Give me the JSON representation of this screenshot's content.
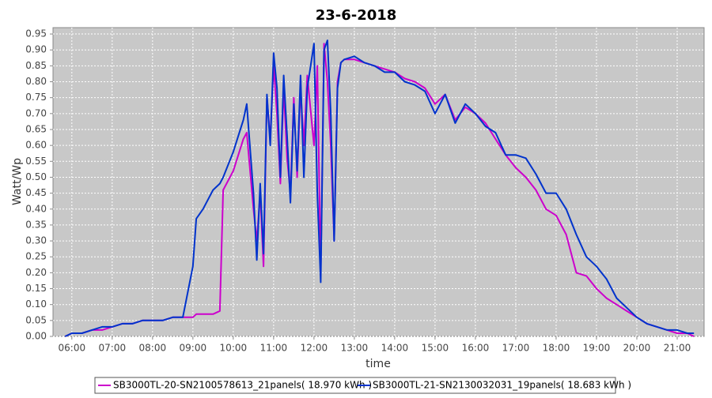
{
  "chart_data": {
    "type": "line",
    "title": "23-6-2018",
    "x_label": "time",
    "y_label": "Watt/Wp",
    "x": [
      "05:50",
      "06:00",
      "06:15",
      "06:30",
      "06:45",
      "07:00",
      "07:15",
      "07:30",
      "07:45",
      "08:00",
      "08:15",
      "08:30",
      "08:45",
      "09:00",
      "09:05",
      "09:15",
      "09:30",
      "09:40",
      "09:45",
      "10:00",
      "10:15",
      "10:20",
      "10:30",
      "10:35",
      "10:40",
      "10:45",
      "10:50",
      "10:55",
      "11:00",
      "11:05",
      "11:10",
      "11:15",
      "11:20",
      "11:25",
      "11:30",
      "11:35",
      "11:40",
      "11:45",
      "11:50",
      "12:00",
      "12:05",
      "12:10",
      "12:15",
      "12:20",
      "12:25",
      "12:30",
      "12:35",
      "12:40",
      "12:45",
      "13:00",
      "13:15",
      "13:30",
      "13:45",
      "14:00",
      "14:15",
      "14:30",
      "14:45",
      "15:00",
      "15:15",
      "15:30",
      "15:45",
      "16:00",
      "16:15",
      "16:30",
      "16:45",
      "17:00",
      "17:15",
      "17:30",
      "17:45",
      "18:00",
      "18:15",
      "18:30",
      "18:45",
      "19:00",
      "19:15",
      "19:30",
      "19:45",
      "20:00",
      "20:15",
      "20:30",
      "20:45",
      "21:00",
      "21:15",
      "21:25"
    ],
    "series": [
      {
        "name": "SB3000TL-20-SN2100578613_21panels( 18.970 kWh )",
        "color": "#cc00cc",
        "values": [
          0.0,
          0.01,
          0.01,
          0.02,
          0.02,
          0.03,
          0.04,
          0.04,
          0.05,
          0.05,
          0.05,
          0.06,
          0.06,
          0.06,
          0.07,
          0.07,
          0.07,
          0.08,
          0.46,
          0.52,
          0.62,
          0.64,
          0.4,
          0.3,
          0.45,
          0.22,
          0.75,
          0.62,
          0.85,
          0.7,
          0.48,
          0.78,
          0.56,
          0.45,
          0.75,
          0.5,
          0.78,
          0.6,
          0.82,
          0.6,
          0.85,
          0.2,
          0.92,
          0.8,
          0.6,
          0.3,
          0.8,
          0.86,
          0.87,
          0.87,
          0.86,
          0.85,
          0.84,
          0.83,
          0.81,
          0.8,
          0.78,
          0.73,
          0.76,
          0.68,
          0.72,
          0.7,
          0.67,
          0.62,
          0.57,
          0.53,
          0.5,
          0.46,
          0.4,
          0.38,
          0.32,
          0.2,
          0.19,
          0.15,
          0.12,
          0.1,
          0.08,
          0.06,
          0.04,
          0.03,
          0.02,
          0.01,
          0.01,
          0.0
        ]
      },
      {
        "name": "SB3000TL-21-SN2130032031_19panels( 18.683 kWh )",
        "color": "#0033cc",
        "values": [
          0.0,
          0.01,
          0.01,
          0.02,
          0.03,
          0.03,
          0.04,
          0.04,
          0.05,
          0.05,
          0.05,
          0.06,
          0.06,
          0.22,
          0.37,
          0.4,
          0.46,
          0.48,
          0.5,
          0.58,
          0.68,
          0.73,
          0.45,
          0.24,
          0.48,
          0.26,
          0.76,
          0.6,
          0.89,
          0.78,
          0.5,
          0.82,
          0.63,
          0.42,
          0.73,
          0.52,
          0.82,
          0.5,
          0.78,
          0.92,
          0.45,
          0.17,
          0.9,
          0.93,
          0.7,
          0.3,
          0.78,
          0.86,
          0.87,
          0.88,
          0.86,
          0.85,
          0.83,
          0.83,
          0.8,
          0.79,
          0.77,
          0.7,
          0.76,
          0.67,
          0.73,
          0.7,
          0.66,
          0.64,
          0.57,
          0.57,
          0.56,
          0.51,
          0.45,
          0.45,
          0.4,
          0.32,
          0.25,
          0.22,
          0.18,
          0.12,
          0.09,
          0.06,
          0.04,
          0.03,
          0.02,
          0.02,
          0.01,
          0.01
        ]
      }
    ],
    "xlim": [
      "05:32",
      "21:40"
    ],
    "xticks": [
      "06:00",
      "07:00",
      "08:00",
      "09:00",
      "10:00",
      "11:00",
      "12:00",
      "13:00",
      "14:00",
      "15:00",
      "16:00",
      "17:00",
      "18:00",
      "19:00",
      "20:00",
      "21:00"
    ],
    "ylim": [
      0,
      0.97
    ],
    "yticks": [
      {
        "value": 0,
        "label": "0.00"
      },
      {
        "value": 0.05,
        "label": "0.05"
      },
      {
        "value": 0.1,
        "label": "0.10"
      },
      {
        "value": 0.15,
        "label": "0.15"
      },
      {
        "value": 0.2,
        "label": "0.20"
      },
      {
        "value": 0.25,
        "label": "0.25"
      },
      {
        "value": 0.3,
        "label": "0.30"
      },
      {
        "value": 0.35,
        "label": "0.35"
      },
      {
        "value": 0.4,
        "label": "0.40"
      },
      {
        "value": 0.45,
        "label": "0.45"
      },
      {
        "value": 0.5,
        "label": "0.50"
      },
      {
        "value": 0.55,
        "label": "0.55"
      },
      {
        "value": 0.6,
        "label": "0.60"
      },
      {
        "value": 0.65,
        "label": "0.65"
      },
      {
        "value": 0.7,
        "label": "0.70"
      },
      {
        "value": 0.75,
        "label": "0.75"
      },
      {
        "value": 0.8,
        "label": "0.80"
      },
      {
        "value": 0.85,
        "label": "0.85"
      },
      {
        "value": 0.9,
        "label": "0.90"
      },
      {
        "value": 0.95,
        "label": "0.95"
      }
    ],
    "grid": true,
    "legend": "bottom"
  }
}
